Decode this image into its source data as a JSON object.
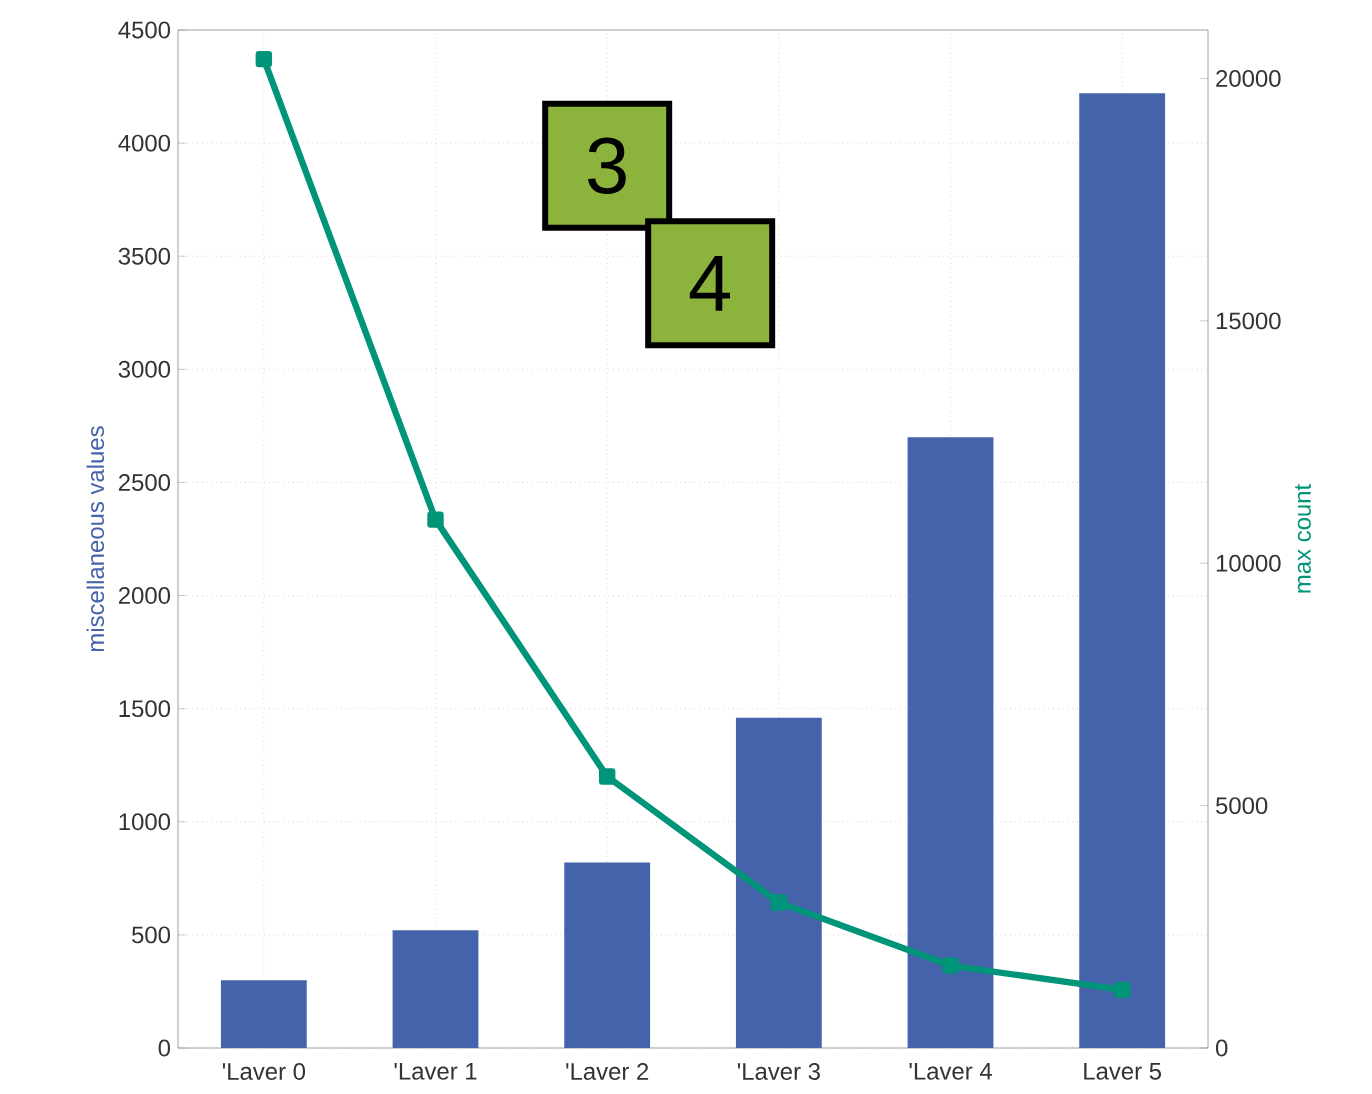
{
  "chart_data": {
    "type": "bar",
    "ylabel": "miscellaneous values",
    "y2label": "max count",
    "categories": [
      "'Laver 0",
      "'Laver 1",
      "'Laver 2",
      "'Laver 3",
      "'Laver 4",
      "Laver 5"
    ],
    "series": [
      {
        "color": "#4563aa",
        "values": [
          300,
          520,
          820,
          1460,
          2700,
          4220
        ]
      },
      {
        "type": "line",
        "axis": "y2",
        "color": "#009478",
        "marker": "square",
        "values": [
          20400,
          10900,
          5600,
          3000,
          1700,
          1200
        ]
      }
    ],
    "ylim": [
      0,
      4500
    ],
    "yticks": [
      0,
      500,
      1000,
      1500,
      2000,
      2500,
      3000,
      3500,
      4000,
      4500
    ],
    "y2lim": [
      0,
      21000
    ],
    "y2ticks": [
      0,
      5000,
      10000,
      15000,
      20000
    ],
    "grid": true,
    "annotations": [
      "3",
      "4"
    ]
  }
}
